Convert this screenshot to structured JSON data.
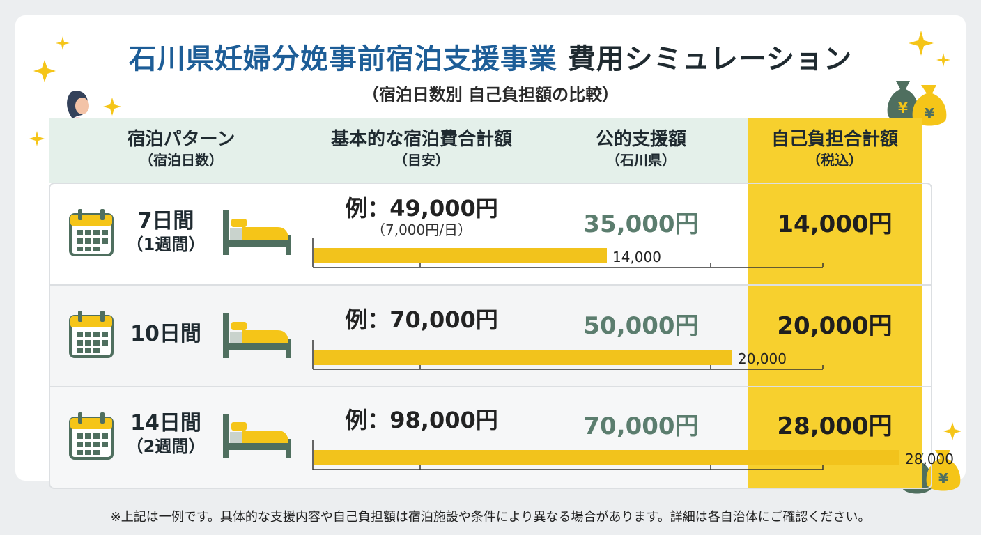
{
  "title": {
    "highlight": "石川県妊婦分娩事前宿泊支援事業",
    "rest": " 費用シミュレーション",
    "subtitle": "（宿泊日数別 自己負担額の比較）"
  },
  "headers": {
    "pattern": "宿泊パターン",
    "pattern_sub": "（宿泊日数）",
    "cost": "基本的な宿泊費合計額",
    "cost_sub": "（目安）",
    "support": "公的支援額",
    "support_sub": "（石川県）",
    "self": "自己負担合計額",
    "self_sub": "（税込）"
  },
  "rows": [
    {
      "days": "7日間",
      "days_sub": "（1週間）",
      "cost": "例：49,000円",
      "cost_sub": "（7,000円/日）",
      "support": "35,000円",
      "self": "14,000円"
    },
    {
      "days": "10日間",
      "days_sub": "",
      "cost": "例：70,000円",
      "cost_sub": "",
      "support": "50,000円",
      "self": "20,000円"
    },
    {
      "days": "14日間",
      "days_sub": "（2週間）",
      "cost": "例：98,000円",
      "cost_sub": "",
      "support": "70,000円",
      "self": "28,000円"
    }
  ],
  "chart_data": {
    "type": "bar",
    "categories": [
      "7日間",
      "10日間",
      "14日間"
    ],
    "values": [
      14000,
      20000,
      28000
    ],
    "value_labels": [
      "14,000",
      "20,000",
      "28,000"
    ],
    "xlim": [
      0,
      30000
    ],
    "grid": false
  },
  "footer": "※上記は一例です。具体的な支援内容や自己負担額は宿泊施設や条件により異なる場合があります。詳細は各自治体にご確認ください。",
  "colors": {
    "accent_yellow": "#f7d02e",
    "bar": "#f2c31c",
    "support_green": "#5b7d6e",
    "title_blue": "#1d5d97",
    "header_band": "#e4f0ea",
    "icon_green": "#4f6f5f"
  },
  "icons": [
    "sparkle-icon",
    "pregnant-woman-icon",
    "money-bag-icon",
    "calendar-icon",
    "bed-icon"
  ]
}
